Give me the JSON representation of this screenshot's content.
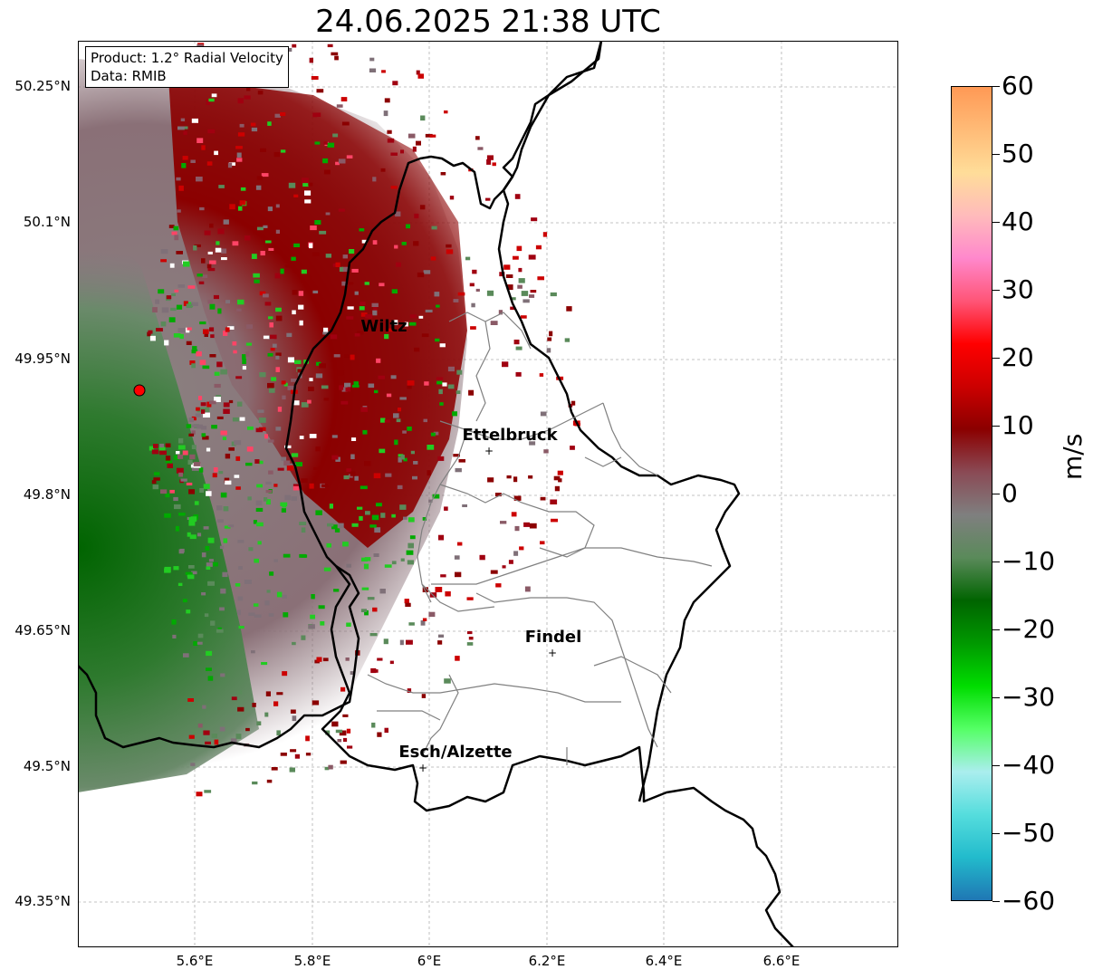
{
  "title": "24.06.2025 21:38 UTC",
  "info_box": {
    "product": "Product: 1.2° Radial Velocity",
    "data": "Data: RMIB"
  },
  "axes": {
    "lat_labels": [
      "50.25°N",
      "50.1°N",
      "49.95°N",
      "49.8°N",
      "49.65°N",
      "49.5°N",
      "49.35°N"
    ],
    "lon_labels": [
      "5.6°E",
      "5.8°E",
      "6°E",
      "6.2°E",
      "6.4°E",
      "6.6°E"
    ]
  },
  "cities": [
    {
      "name": "Wiltz",
      "marker": false
    },
    {
      "name": "Ettelbruck",
      "marker": true
    },
    {
      "name": "Findel",
      "marker": true
    },
    {
      "name": "Esch/Alzette",
      "marker": true
    }
  ],
  "colorbar": {
    "unit": "m/s",
    "tick_labels": [
      "60",
      "50",
      "40",
      "30",
      "20",
      "10",
      "0",
      "−10",
      "−20",
      "−30",
      "−40",
      "−50",
      "−60"
    ],
    "range": [
      -60,
      60
    ],
    "stops": [
      "#ff9955",
      "#ffbb77",
      "#ffdd99",
      "#ffbbbb",
      "#ff88cc",
      "#ff5577",
      "#ff0000",
      "#cc0000",
      "#8b0000",
      "#8a4a55",
      "#7f7f7f",
      "#5a8a5a",
      "#006400",
      "#009900",
      "#00dd00",
      "#55ff66",
      "#aaeeee",
      "#55dddd",
      "#22bbcc",
      "#1f77b4"
    ]
  },
  "radar": {
    "site_color": "#ff0000"
  }
}
